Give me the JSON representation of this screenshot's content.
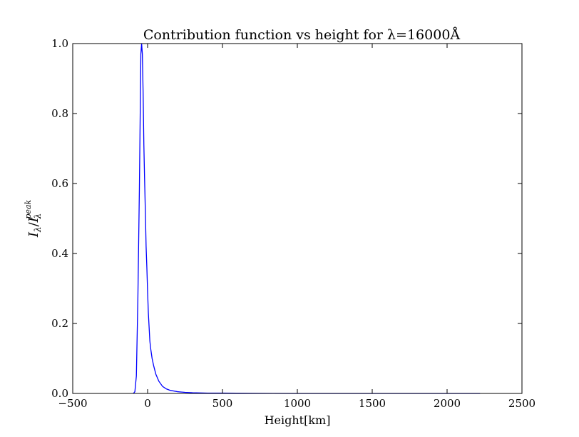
{
  "chart_data": {
    "type": "line",
    "title": "Contribution function vs height for λ=16000Å",
    "xlabel": "Height[km]",
    "ylabel": {
      "main": "I",
      "sub1": "λ",
      "slash": "/",
      "main2": "I",
      "sub2": "λ",
      "sup2": "peak"
    },
    "xlim": [
      -500,
      2500
    ],
    "ylim": [
      0,
      1.0
    ],
    "xticks": [
      -500,
      0,
      500,
      1000,
      1500,
      2000,
      2500
    ],
    "yticks": [
      0.0,
      0.2,
      0.4,
      0.6,
      0.8,
      1.0
    ],
    "xtick_labels": [
      "−500",
      "0",
      "500",
      "1000",
      "1500",
      "2000",
      "2500"
    ],
    "ytick_labels": [
      "0.0",
      "0.2",
      "0.4",
      "0.6",
      "0.8",
      "1.0"
    ],
    "grid": false,
    "series": [
      {
        "color": "#0000ff",
        "x": [
          -95,
          -85,
          -75,
          -65,
          -55,
          -45,
          -40,
          -35,
          -30,
          -25,
          -20,
          -15,
          -10,
          -5,
          0,
          5,
          10,
          15,
          20,
          30,
          40,
          55,
          75,
          100,
          125,
          150,
          200,
          250,
          300,
          400,
          500,
          700,
          1000,
          1500,
          2000,
          2220
        ],
        "y": [
          0.0,
          0.005,
          0.05,
          0.27,
          0.58,
          0.97,
          1.0,
          0.97,
          0.86,
          0.71,
          0.61,
          0.52,
          0.42,
          0.36,
          0.29,
          0.23,
          0.19,
          0.15,
          0.13,
          0.1,
          0.08,
          0.055,
          0.035,
          0.02,
          0.013,
          0.009,
          0.005,
          0.003,
          0.002,
          0.001,
          0.001,
          0.0005,
          0.0,
          0.0,
          0.0,
          0.0
        ]
      }
    ]
  }
}
